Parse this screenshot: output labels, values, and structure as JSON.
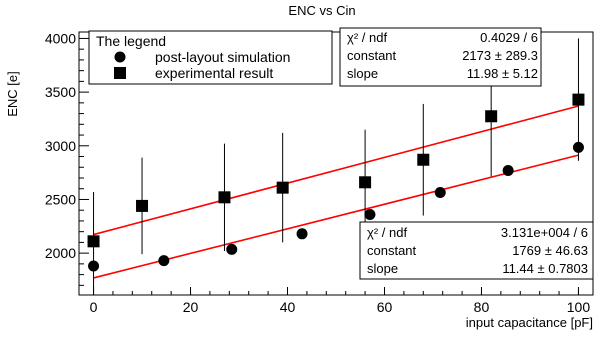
{
  "chart_data": {
    "type": "scatter",
    "title": "ENC vs Cin",
    "xlabel": "input capacitance [pF]",
    "ylabel": "ENC [e]",
    "xlim": [
      -3,
      103
    ],
    "ylim": [
      1610,
      4060
    ],
    "x_ticks": [
      "0",
      "20",
      "40",
      "60",
      "80",
      "100"
    ],
    "y_ticks": [
      "2000",
      "2500",
      "3000",
      "3500",
      "4000"
    ],
    "x_tick_values": [
      0,
      20,
      40,
      60,
      80,
      100
    ],
    "y_tick_values": [
      2000,
      2500,
      3000,
      3500,
      4000
    ],
    "grid": false,
    "legend": {
      "title": "The legend",
      "position": "top-left",
      "entries": [
        {
          "label": "post-layout simulation",
          "marker": "circle"
        },
        {
          "label": "experimental result",
          "marker": "square"
        }
      ]
    },
    "series": [
      {
        "name": "post-layout simulation",
        "marker": "circle",
        "points": [
          {
            "x": 0,
            "y": 1880
          },
          {
            "x": 14.5,
            "y": 1930
          },
          {
            "x": 28.5,
            "y": 2035
          },
          {
            "x": 43,
            "y": 2180
          },
          {
            "x": 57,
            "y": 2360
          },
          {
            "x": 71.5,
            "y": 2565
          },
          {
            "x": 85.5,
            "y": 2770
          },
          {
            "x": 100,
            "y": 2985
          }
        ],
        "fit": {
          "constant": 1769,
          "slope": 11.44
        }
      },
      {
        "name": "experimental result",
        "marker": "square",
        "points": [
          {
            "x": 0,
            "y": 2110,
            "err": 460
          },
          {
            "x": 10,
            "y": 2440,
            "err": 450
          },
          {
            "x": 27,
            "y": 2520,
            "err": 500
          },
          {
            "x": 39,
            "y": 2610,
            "err": 510
          },
          {
            "x": 56,
            "y": 2660,
            "err": 490
          },
          {
            "x": 68,
            "y": 2870,
            "err": 520
          },
          {
            "x": 82,
            "y": 3275,
            "err": 560
          },
          {
            "x": 100,
            "y": 3430,
            "err": 570
          }
        ],
        "fit": {
          "constant": 2173,
          "slope": 11.98
        }
      }
    ],
    "fit_color": "#ff0000",
    "stats_boxes": [
      {
        "position": "top-right",
        "rows": [
          {
            "label": "χ² / ndf",
            "value": "0.4029 / 6"
          },
          {
            "label": "constant",
            "value": "2173 ± 289.3"
          },
          {
            "label": "slope",
            "value": "11.98 ±  5.12"
          }
        ]
      },
      {
        "position": "bottom-right",
        "rows": [
          {
            "label": "χ² / ndf",
            "value": "3.131e+004 / 6"
          },
          {
            "label": "constant",
            "value": "1769 ± 46.63"
          },
          {
            "label": "slope",
            "value": "11.44 ± 0.7803"
          }
        ]
      }
    ]
  }
}
